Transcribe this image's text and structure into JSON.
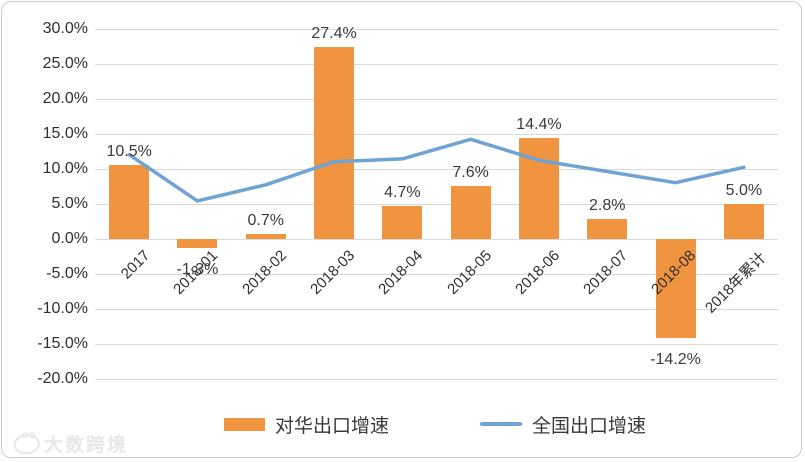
{
  "chart_data": {
    "type": "combo",
    "categories": [
      "2017",
      "2018-01",
      "2018-02",
      "2018-03",
      "2018-04",
      "2018-05",
      "2018-06",
      "2018-07",
      "2018-08",
      "2018年累计"
    ],
    "series": [
      {
        "name": "对华出口增速",
        "type": "bar",
        "color": "#F0943F",
        "values": [
          10.5,
          -1.3,
          0.7,
          27.4,
          4.7,
          7.6,
          14.4,
          2.8,
          -14.2,
          5.0
        ],
        "data_labels": [
          "10.5%",
          "-1.3%",
          "0.7%",
          "27.4%",
          "4.7%",
          "7.6%",
          "14.4%",
          "2.8%",
          "-14.2%",
          "5.0%"
        ]
      },
      {
        "name": "全国出口增速",
        "type": "line",
        "color": "#6FA3D4",
        "values": [
          12.0,
          5.4,
          7.7,
          11.0,
          11.4,
          14.2,
          11.2,
          9.6,
          8.0,
          10.2
        ]
      }
    ],
    "title": "",
    "xlabel": "",
    "ylabel": "",
    "ylim": [
      -20,
      30
    ],
    "ytick_step": 5,
    "ytick_labels": [
      "30.0%",
      "25.0%",
      "20.0%",
      "15.0%",
      "10.0%",
      "5.0%",
      "0.0%",
      "-5.0%",
      "-10.0%",
      "-15.0%",
      "-20.0%"
    ],
    "grid": true,
    "legend_position": "bottom",
    "x_label_rotation_deg": 45
  },
  "legend": {
    "bar_label": "对华出口增速",
    "line_label": "全国出口增速"
  },
  "watermark": {
    "text": "大数跨境"
  },
  "colors": {
    "bar": "#F0943F",
    "line": "#6FA3D4",
    "gridline": "#d9d9d9",
    "frame_border": "#cdcdcd",
    "label_text": "#3b3b3b",
    "watermark": "#e8e8e8"
  }
}
